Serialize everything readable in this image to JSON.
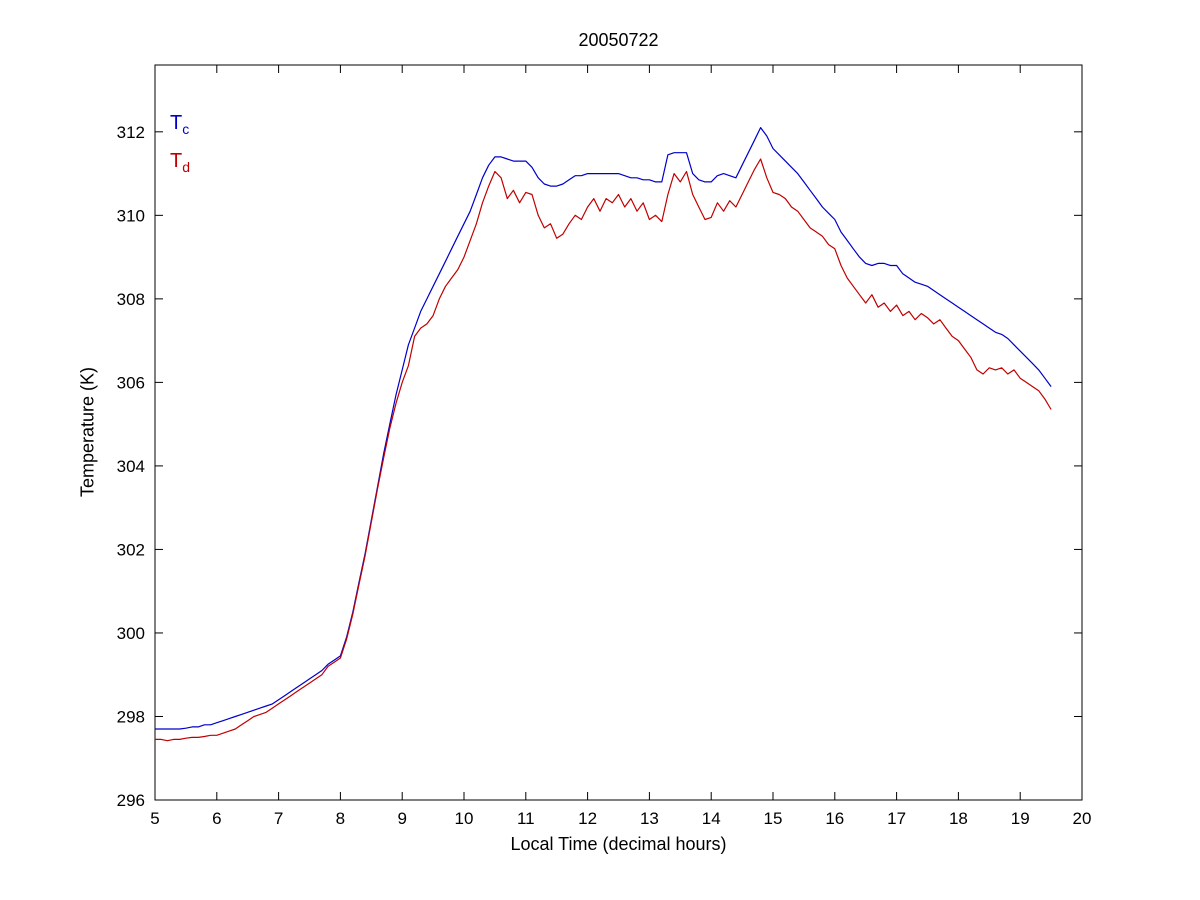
{
  "page": {
    "background": "#ffffff"
  },
  "chart_data": {
    "type": "line",
    "title": "20050722",
    "xlabel": "Local Time (decimal hours)",
    "ylabel": "Temperature (K)",
    "xlim": [
      5,
      20
    ],
    "ylim": [
      296,
      313.6
    ],
    "xticks": [
      5,
      6,
      7,
      8,
      9,
      10,
      11,
      12,
      13,
      14,
      15,
      16,
      17,
      18,
      19,
      20
    ],
    "yticks": [
      296,
      298,
      300,
      302,
      304,
      306,
      308,
      310,
      312
    ],
    "grid": false,
    "box": true,
    "legend": {
      "position": "top-left-inside",
      "entries": [
        {
          "label": "T",
          "sub": "c",
          "color": "#0000cc"
        },
        {
          "label": "T",
          "sub": "d",
          "color": "#c00000"
        }
      ]
    },
    "x": [
      5.0,
      5.1,
      5.2,
      5.3,
      5.4,
      5.5,
      5.6,
      5.7,
      5.8,
      5.9,
      6.0,
      6.1,
      6.2,
      6.3,
      6.4,
      6.5,
      6.6,
      6.7,
      6.8,
      6.9,
      7.0,
      7.1,
      7.2,
      7.3,
      7.4,
      7.5,
      7.6,
      7.7,
      7.8,
      7.9,
      8.0,
      8.1,
      8.2,
      8.3,
      8.4,
      8.5,
      8.6,
      8.7,
      8.8,
      8.9,
      9.0,
      9.1,
      9.2,
      9.3,
      9.4,
      9.5,
      9.6,
      9.7,
      9.8,
      9.9,
      10.0,
      10.1,
      10.2,
      10.3,
      10.4,
      10.5,
      10.6,
      10.7,
      10.8,
      10.9,
      11.0,
      11.1,
      11.2,
      11.3,
      11.4,
      11.5,
      11.6,
      11.7,
      11.8,
      11.9,
      12.0,
      12.1,
      12.2,
      12.3,
      12.4,
      12.5,
      12.6,
      12.7,
      12.8,
      12.9,
      13.0,
      13.1,
      13.2,
      13.3,
      13.4,
      13.5,
      13.6,
      13.7,
      13.8,
      13.9,
      14.0,
      14.1,
      14.2,
      14.3,
      14.4,
      14.5,
      14.6,
      14.7,
      14.8,
      14.9,
      15.0,
      15.1,
      15.2,
      15.3,
      15.4,
      15.5,
      15.6,
      15.7,
      15.8,
      15.9,
      16.0,
      16.1,
      16.2,
      16.3,
      16.4,
      16.5,
      16.6,
      16.7,
      16.8,
      16.9,
      17.0,
      17.1,
      17.2,
      17.3,
      17.4,
      17.5,
      17.6,
      17.7,
      17.8,
      17.9,
      18.0,
      18.1,
      18.2,
      18.3,
      18.4,
      18.5,
      18.6,
      18.7,
      18.8,
      18.9,
      19.0,
      19.1,
      19.2,
      19.3,
      19.4,
      19.5
    ],
    "series": [
      {
        "name": "Tc",
        "color": "#0000cc",
        "values": [
          297.7,
          297.7,
          297.7,
          297.7,
          297.7,
          297.72,
          297.75,
          297.75,
          297.8,
          297.8,
          297.85,
          297.9,
          297.95,
          298.0,
          298.05,
          298.1,
          298.15,
          298.2,
          298.25,
          298.3,
          298.4,
          298.5,
          298.6,
          298.7,
          298.8,
          298.9,
          299.0,
          299.1,
          299.25,
          299.35,
          299.45,
          299.9,
          300.5,
          301.2,
          301.9,
          302.7,
          303.5,
          304.3,
          305.0,
          305.7,
          306.3,
          306.9,
          307.3,
          307.7,
          308.0,
          308.3,
          308.6,
          308.9,
          309.2,
          309.5,
          309.8,
          310.1,
          310.5,
          310.9,
          311.2,
          311.4,
          311.4,
          311.35,
          311.3,
          311.3,
          311.3,
          311.15,
          310.9,
          310.75,
          310.7,
          310.7,
          310.75,
          310.85,
          310.95,
          310.95,
          311.0,
          311.0,
          311.0,
          311.0,
          311.0,
          311.0,
          310.95,
          310.9,
          310.9,
          310.85,
          310.85,
          310.8,
          310.8,
          311.45,
          311.5,
          311.5,
          311.5,
          311.0,
          310.85,
          310.8,
          310.8,
          310.95,
          311.0,
          310.95,
          310.9,
          311.2,
          311.5,
          311.8,
          312.1,
          311.9,
          311.6,
          311.45,
          311.3,
          311.15,
          311.0,
          310.8,
          310.6,
          310.4,
          310.2,
          310.05,
          309.9,
          309.6,
          309.4,
          309.2,
          309.0,
          308.85,
          308.8,
          308.85,
          308.85,
          308.8,
          308.8,
          308.6,
          308.5,
          308.4,
          308.35,
          308.3,
          308.2,
          308.1,
          308.0,
          307.9,
          307.8,
          307.7,
          307.6,
          307.5,
          307.4,
          307.3,
          307.2,
          307.15,
          307.05,
          306.9,
          306.75,
          306.6,
          306.45,
          306.3,
          306.1,
          305.9
        ]
      },
      {
        "name": "Td",
        "color": "#c00000",
        "values": [
          297.45,
          297.45,
          297.42,
          297.45,
          297.45,
          297.48,
          297.5,
          297.5,
          297.52,
          297.55,
          297.55,
          297.6,
          297.65,
          297.7,
          297.8,
          297.9,
          298.0,
          298.05,
          298.1,
          298.2,
          298.3,
          298.4,
          298.5,
          298.6,
          298.7,
          298.8,
          298.9,
          299.0,
          299.2,
          299.3,
          299.4,
          299.85,
          300.45,
          301.15,
          301.85,
          302.65,
          303.45,
          304.2,
          304.9,
          305.5,
          306.0,
          306.4,
          307.1,
          307.3,
          307.4,
          307.6,
          308.0,
          308.3,
          308.5,
          308.7,
          309.0,
          309.4,
          309.8,
          310.3,
          310.7,
          311.05,
          310.9,
          310.4,
          310.6,
          310.3,
          310.55,
          310.5,
          310.0,
          309.7,
          309.8,
          309.45,
          309.55,
          309.8,
          310.0,
          309.9,
          310.2,
          310.4,
          310.1,
          310.4,
          310.3,
          310.5,
          310.2,
          310.4,
          310.1,
          310.3,
          309.9,
          310.0,
          309.85,
          310.5,
          311.0,
          310.8,
          311.05,
          310.5,
          310.2,
          309.9,
          309.95,
          310.3,
          310.1,
          310.35,
          310.2,
          310.5,
          310.8,
          311.1,
          311.35,
          310.9,
          310.55,
          310.5,
          310.4,
          310.2,
          310.1,
          309.9,
          309.7,
          309.6,
          309.5,
          309.3,
          309.2,
          308.8,
          308.5,
          308.3,
          308.1,
          307.9,
          308.1,
          307.8,
          307.9,
          307.7,
          307.85,
          307.6,
          307.7,
          307.5,
          307.65,
          307.55,
          307.4,
          307.5,
          307.3,
          307.1,
          307.0,
          306.8,
          306.6,
          306.3,
          306.2,
          306.35,
          306.3,
          306.35,
          306.2,
          306.3,
          306.1,
          306.0,
          305.9,
          305.8,
          305.6,
          305.35
        ]
      }
    ]
  }
}
